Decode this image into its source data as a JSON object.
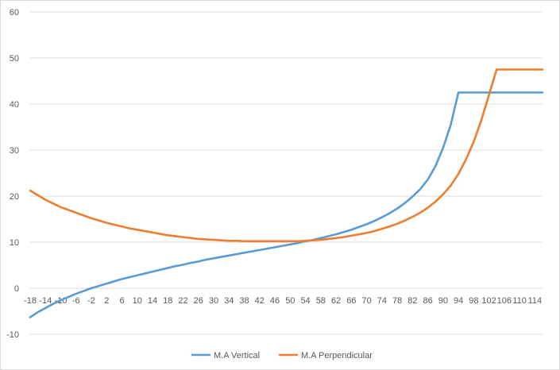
{
  "chart_data": {
    "type": "line",
    "title": "",
    "xlabel": "",
    "ylabel": "",
    "ylim": [
      -10,
      60
    ],
    "y_ticks": [
      -10,
      0,
      10,
      20,
      30,
      40,
      50,
      60
    ],
    "x_tick_labels": [
      "-18",
      "-14",
      "-10",
      "-6",
      "-2",
      "2",
      "6",
      "10",
      "14",
      "18",
      "22",
      "26",
      "30",
      "34",
      "38",
      "42",
      "46",
      "50",
      "54",
      "58",
      "62",
      "66",
      "70",
      "74",
      "78",
      "82",
      "86",
      "90",
      "94",
      "98",
      "102",
      "106",
      "110",
      "114"
    ],
    "x": [
      -18,
      -16,
      -14,
      -12,
      -10,
      -8,
      -6,
      -4,
      -2,
      0,
      2,
      4,
      6,
      8,
      10,
      12,
      14,
      16,
      18,
      20,
      22,
      24,
      26,
      28,
      30,
      32,
      34,
      36,
      38,
      40,
      42,
      44,
      46,
      48,
      50,
      52,
      54,
      56,
      58,
      60,
      62,
      64,
      66,
      68,
      70,
      72,
      74,
      76,
      78,
      80,
      82,
      84,
      86,
      88,
      90,
      92,
      94,
      96,
      98,
      100,
      102,
      104,
      106,
      108,
      110,
      112,
      114,
      116
    ],
    "grid": true,
    "legend_position": "bottom",
    "series": [
      {
        "name": "M.A Vertical",
        "color": "#5b9bd5",
        "values": [
          -6.3,
          -5.2,
          -4.3,
          -3.4,
          -2.6,
          -1.9,
          -1.2,
          -0.6,
          0.0,
          0.5,
          1.0,
          1.5,
          2.0,
          2.4,
          2.8,
          3.2,
          3.6,
          4.0,
          4.4,
          4.8,
          5.1,
          5.5,
          5.8,
          6.2,
          6.5,
          6.8,
          7.1,
          7.4,
          7.7,
          8.0,
          8.3,
          8.6,
          8.9,
          9.2,
          9.5,
          9.8,
          10.2,
          10.5,
          10.9,
          11.3,
          11.7,
          12.2,
          12.7,
          13.3,
          13.9,
          14.6,
          15.4,
          16.3,
          17.3,
          18.5,
          19.9,
          21.5,
          23.6,
          26.5,
          30.5,
          35.5,
          42.5,
          42.5,
          42.5,
          42.5,
          42.5,
          42.5,
          42.5,
          42.5,
          42.5,
          42.5,
          42.5,
          42.5
        ]
      },
      {
        "name": "M.A Perpendicular",
        "color": "#ed7d31",
        "values": [
          21.2,
          20.2,
          19.2,
          18.4,
          17.6,
          17.0,
          16.4,
          15.8,
          15.2,
          14.7,
          14.2,
          13.8,
          13.4,
          13.0,
          12.7,
          12.4,
          12.1,
          11.8,
          11.5,
          11.3,
          11.1,
          10.9,
          10.7,
          10.6,
          10.5,
          10.4,
          10.3,
          10.3,
          10.2,
          10.2,
          10.2,
          10.2,
          10.2,
          10.2,
          10.2,
          10.2,
          10.3,
          10.4,
          10.5,
          10.7,
          10.9,
          11.1,
          11.4,
          11.7,
          12.0,
          12.4,
          12.9,
          13.4,
          14.0,
          14.7,
          15.5,
          16.4,
          17.5,
          18.8,
          20.4,
          22.3,
          24.8,
          28.0,
          31.8,
          36.5,
          42.0,
          47.5,
          47.5,
          47.5,
          47.5,
          47.5,
          47.5,
          47.5
        ]
      }
    ]
  }
}
